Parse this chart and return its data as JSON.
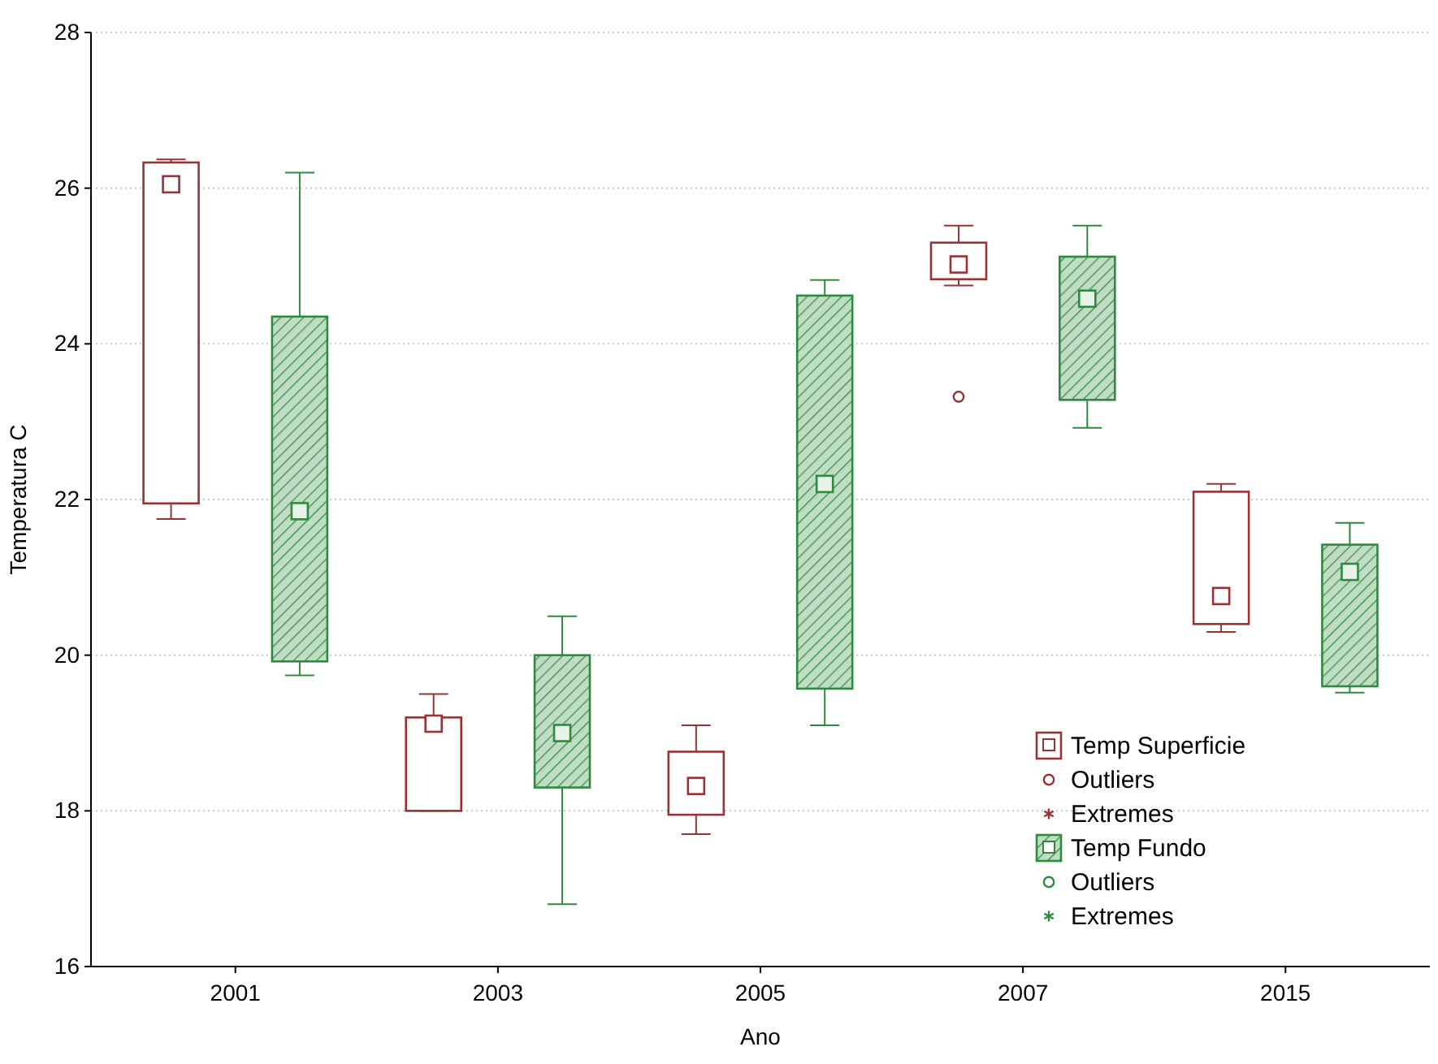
{
  "chart_data": {
    "type": "box",
    "xlabel": "Ano",
    "ylabel": "Temperatura C",
    "categories": [
      "2001",
      "2003",
      "2005",
      "2007",
      "2015"
    ],
    "ylim": [
      16,
      28
    ],
    "yticks": [
      16,
      18,
      20,
      22,
      24,
      26,
      28
    ],
    "grid": "y",
    "legend": "bottom right",
    "series": [
      {
        "name": "Temp Superficie",
        "type": "box",
        "color": "#993333",
        "boxes": [
          {
            "low": 21.75,
            "q1": 21.95,
            "median": 26.05,
            "q3": 26.33,
            "high": 26.37
          },
          {
            "low": 18.0,
            "q1": 18.0,
            "median": 19.12,
            "q3": 19.2,
            "high": 19.5
          },
          {
            "low": 17.7,
            "q1": 17.95,
            "median": 18.32,
            "q3": 18.76,
            "high": 19.1
          },
          {
            "low": 24.75,
            "q1": 24.83,
            "median": 25.02,
            "q3": 25.3,
            "high": 25.52,
            "outliers": [
              23.32
            ]
          },
          {
            "low": 20.3,
            "q1": 20.4,
            "median": 20.76,
            "q3": 22.1,
            "high": 22.2
          }
        ]
      },
      {
        "name": "Outliers",
        "type": "scatter",
        "color": "#993333",
        "marker": "circle",
        "values": [
          null,
          null,
          null,
          null,
          null
        ]
      },
      {
        "name": "Extremes",
        "type": "scatter",
        "color": "#993333",
        "marker": "star",
        "values": [
          null,
          null,
          null,
          null,
          null
        ]
      },
      {
        "name": "Temp Fundo",
        "type": "box",
        "color": "#2e8b3e",
        "boxes": [
          {
            "low": 19.74,
            "q1": 19.92,
            "median": 21.85,
            "q3": 24.35,
            "high": 26.2
          },
          {
            "low": 16.8,
            "q1": 18.3,
            "median": 19.0,
            "q3": 20.0,
            "high": 20.5
          },
          {
            "low": 19.1,
            "q1": 19.57,
            "median": 22.2,
            "q3": 24.62,
            "high": 24.82
          },
          {
            "low": 22.92,
            "q1": 23.28,
            "median": 24.58,
            "q3": 25.12,
            "high": 25.52
          },
          {
            "low": 19.52,
            "q1": 19.6,
            "median": 21.07,
            "q3": 21.42,
            "high": 21.7
          }
        ]
      },
      {
        "name": "Outliers",
        "type": "scatter",
        "color": "#2e8b3e",
        "marker": "circle",
        "values": [
          null,
          null,
          null,
          null,
          null
        ]
      },
      {
        "name": "Extremes",
        "type": "scatter",
        "color": "#2e8b3e",
        "marker": "star",
        "values": [
          null,
          null,
          null,
          null,
          null
        ]
      }
    ]
  }
}
